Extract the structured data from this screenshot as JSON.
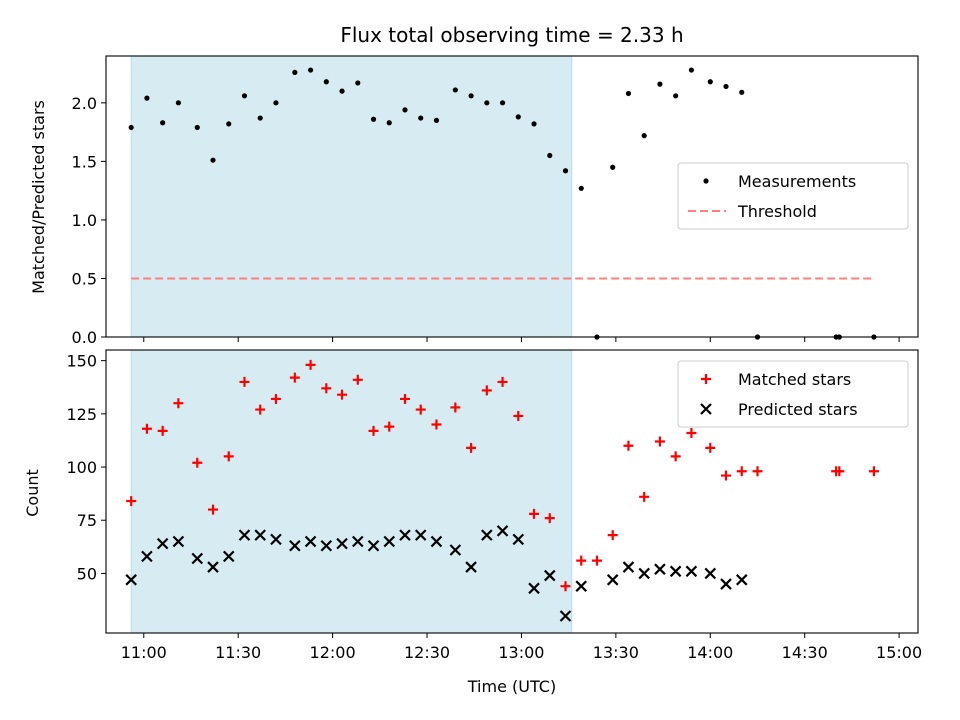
{
  "title": "Flux total observing time = 2.33 h",
  "colors": {
    "measurement": "#000000",
    "threshold": "#ff7f7f",
    "matched": "#ff0000",
    "predicted": "#000000",
    "span": "#add8e6"
  },
  "chart_data": [
    {
      "type": "scatter",
      "panel": "top",
      "ylabel": "Matched/Predicted stars",
      "ylim": [
        0,
        2.4
      ],
      "yticks": [
        "0.0",
        "0.5",
        "1.0",
        "1.5",
        "2.0"
      ],
      "xlim": [
        "10:48",
        "15:06"
      ],
      "shaded_span": [
        "10:56",
        "13:16"
      ],
      "legend": {
        "placement": "center-right",
        "entries": [
          "Measurements",
          "Threshold"
        ]
      },
      "series": [
        {
          "name": "Measurements",
          "marker": "dot",
          "x": [
            "10:56",
            "11:01",
            "11:06",
            "11:11",
            "11:17",
            "11:22",
            "11:27",
            "11:32",
            "11:37",
            "11:42",
            "11:48",
            "11:53",
            "11:58",
            "12:03",
            "12:08",
            "12:13",
            "12:18",
            "12:23",
            "12:28",
            "12:33",
            "12:39",
            "12:44",
            "12:49",
            "12:54",
            "12:59",
            "13:04",
            "13:09",
            "13:14",
            "13:19",
            "13:24",
            "13:29",
            "13:34",
            "13:39",
            "13:44",
            "13:49",
            "13:54",
            "14:00",
            "14:05",
            "14:10",
            "14:15",
            "14:40",
            "14:41",
            "14:52"
          ],
          "y": [
            1.79,
            2.04,
            1.83,
            2.0,
            1.79,
            1.51,
            1.82,
            2.06,
            1.87,
            2.0,
            2.26,
            2.28,
            2.18,
            2.1,
            2.17,
            1.86,
            1.83,
            1.94,
            1.87,
            1.85,
            2.11,
            2.06,
            2.0,
            2.0,
            1.88,
            1.82,
            1.55,
            1.42,
            1.27,
            0.0,
            1.45,
            2.08,
            1.72,
            2.16,
            2.06,
            2.28,
            2.18,
            2.14,
            2.09,
            0.0,
            0.0,
            0.0,
            0.0
          ]
        },
        {
          "name": "Threshold",
          "style": "dashed",
          "x": [
            "10:56",
            "14:52"
          ],
          "y": [
            0.5,
            0.5
          ]
        }
      ]
    },
    {
      "type": "scatter",
      "panel": "bottom",
      "xlabel": "Time (UTC)",
      "ylabel": "Count",
      "ylim": [
        22,
        155
      ],
      "yticks": [
        "50",
        "75",
        "100",
        "125",
        "150"
      ],
      "xlim": [
        "10:48",
        "15:06"
      ],
      "xticks": [
        "11:00",
        "11:30",
        "12:00",
        "12:30",
        "13:00",
        "13:30",
        "14:00",
        "14:30",
        "15:00"
      ],
      "shaded_span": [
        "10:56",
        "13:16"
      ],
      "legend": {
        "placement": "top-right",
        "entries": [
          "Matched stars",
          "Predicted stars"
        ]
      },
      "series": [
        {
          "name": "Matched stars",
          "marker": "plus",
          "x": [
            "10:56",
            "11:01",
            "11:06",
            "11:11",
            "11:17",
            "11:22",
            "11:27",
            "11:32",
            "11:37",
            "11:42",
            "11:48",
            "11:53",
            "11:58",
            "12:03",
            "12:08",
            "12:13",
            "12:18",
            "12:23",
            "12:28",
            "12:33",
            "12:39",
            "12:44",
            "12:49",
            "12:54",
            "12:59",
            "13:04",
            "13:09",
            "13:14",
            "13:19",
            "13:24",
            "13:29",
            "13:34",
            "13:39",
            "13:44",
            "13:49",
            "13:54",
            "14:00",
            "14:05",
            "14:10",
            "14:15",
            "14:40",
            "14:41",
            "14:52"
          ],
          "y": [
            84,
            118,
            117,
            130,
            102,
            80,
            105,
            140,
            127,
            132,
            142,
            148,
            137,
            134,
            141,
            117,
            119,
            132,
            127,
            120,
            128,
            109,
            136,
            140,
            124,
            78,
            76,
            44,
            56,
            56,
            68,
            110,
            86,
            112,
            105,
            116,
            109,
            96,
            98,
            98,
            98,
            98,
            98
          ]
        },
        {
          "name": "Predicted stars",
          "marker": "x",
          "x": [
            "10:56",
            "11:01",
            "11:06",
            "11:11",
            "11:17",
            "11:22",
            "11:27",
            "11:32",
            "11:37",
            "11:42",
            "11:48",
            "11:53",
            "11:58",
            "12:03",
            "12:08",
            "12:13",
            "12:18",
            "12:23",
            "12:28",
            "12:33",
            "12:39",
            "12:44",
            "12:49",
            "12:54",
            "12:59",
            "13:04",
            "13:09",
            "13:14",
            "13:19",
            "13:29",
            "13:34",
            "13:39",
            "13:44",
            "13:49",
            "13:54",
            "14:00",
            "14:05",
            "14:10"
          ],
          "y": [
            47,
            58,
            64,
            65,
            57,
            53,
            58,
            68,
            68,
            66,
            63,
            65,
            63,
            64,
            65,
            63,
            65,
            68,
            68,
            65,
            61,
            53,
            68,
            70,
            66,
            43,
            49,
            30,
            44,
            47,
            53,
            50,
            52,
            51,
            51,
            50,
            45,
            47
          ]
        }
      ]
    }
  ]
}
